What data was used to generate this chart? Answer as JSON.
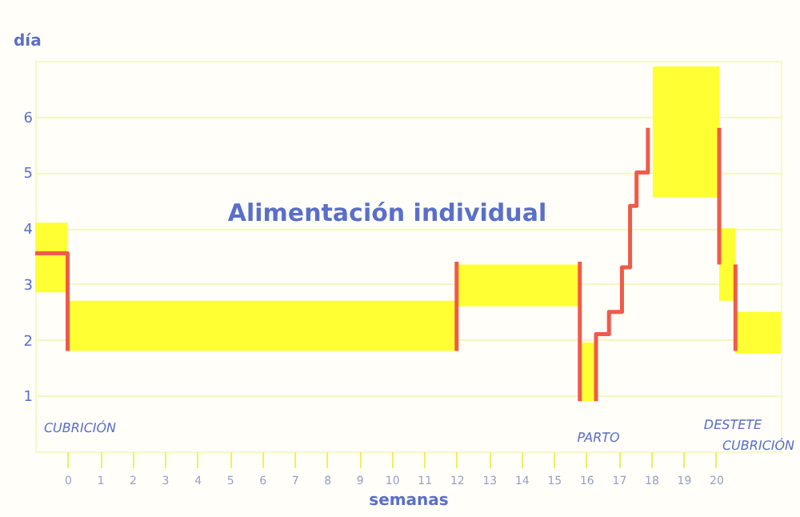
{
  "chart_data": {
    "type": "line",
    "title": "Alimentación individual",
    "xlabel": "semanas",
    "ylabel": "día",
    "xlim": [
      -1,
      22
    ],
    "xticks": [
      0,
      1,
      2,
      3,
      4,
      5,
      6,
      7,
      8,
      9,
      10,
      11,
      12,
      13,
      14,
      15,
      16,
      17,
      18,
      19,
      20
    ],
    "ylim": [
      0,
      7
    ],
    "yticks": [
      1,
      2,
      3,
      4,
      5,
      6
    ],
    "grid": "y",
    "series": [
      {
        "type": "area",
        "color": "#ffff33",
        "x": [
          -1,
          0,
          0,
          12,
          12,
          15.8,
          15.8,
          16.3,
          17,
          18.05,
          20.1,
          20.1,
          20.6,
          20.6,
          22
        ],
        "values": [
          null,
          null,
          null,
          null,
          null,
          null,
          null,
          null,
          null,
          null,
          null,
          null,
          null,
          null,
          null
        ],
        "lower": [
          2.85,
          2.85,
          1.8,
          1.8,
          2.6,
          2.6,
          0.9,
          0.9,
          null,
          4.55,
          4.55,
          2.7,
          2.7,
          1.75,
          1.75
        ],
        "upper": [
          4.1,
          4.1,
          2.7,
          2.7,
          3.35,
          3.35,
          1.95,
          1.95,
          null,
          6.9,
          6.9,
          4.0,
          4.0,
          2.5,
          2.5
        ]
      },
      {
        "color": "#f05a4a",
        "line_style": "solid",
        "x": [
          -1,
          0,
          0,
          1,
          12,
          12,
          14,
          15.8,
          15.8,
          16,
          16.3,
          16.3,
          16.7,
          16.7,
          17.1,
          17.1,
          17.35,
          17.35,
          17.55,
          17.55,
          17.9,
          17.9,
          19,
          20.1,
          20.1,
          20.4,
          20.6,
          20.6
        ],
        "values": [
          3.55,
          3.55,
          1.8,
          null,
          1.8,
          3.4,
          null,
          3.4,
          0.9,
          null,
          0.9,
          2.1,
          2.1,
          2.5,
          2.5,
          3.3,
          3.3,
          4.4,
          4.4,
          5.0,
          5.0,
          5.8,
          null,
          5.8,
          3.35,
          null,
          3.35,
          1.8
        ]
      }
    ],
    "annotations": [
      "CUBRICIÓN",
      "PARTO",
      "DESTETE",
      "CUBRICIÓN"
    ]
  }
}
